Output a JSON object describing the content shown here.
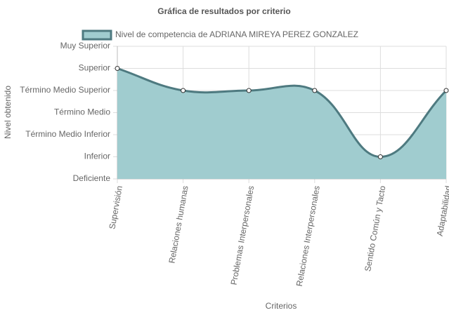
{
  "chart_data": {
    "type": "line",
    "title": "Gráfica de resultados por criterio",
    "x_label": "Criterios",
    "y_label": "Nivel obtenido",
    "categories": [
      "Supervisión",
      "Relaciones humanas",
      "Problemas Interpersonales",
      "Relaciones Interpersonales",
      "Sentido Común y Tacto",
      "Adaptabilidad"
    ],
    "series": [
      {
        "name": "Nivel de competencia de ADRIANA MIREYA PEREZ GONZALEZ",
        "color": "#4e7a80",
        "fill_color": "#a0cccf",
        "values": [
          5,
          4,
          4,
          4,
          1,
          4
        ]
      }
    ],
    "ylim": [
      0,
      6
    ],
    "yticks": [
      {
        "value": 0,
        "label": "Deficiente"
      },
      {
        "value": 1,
        "label": "Inferior"
      },
      {
        "value": 2,
        "label": "Término Medio Inferior"
      },
      {
        "value": 3,
        "label": "Término Medio"
      },
      {
        "value": 4,
        "label": "Término Medio Superior"
      },
      {
        "value": 5,
        "label": "Superior"
      },
      {
        "value": 6,
        "label": "Muy Superior"
      }
    ],
    "grid": true
  }
}
